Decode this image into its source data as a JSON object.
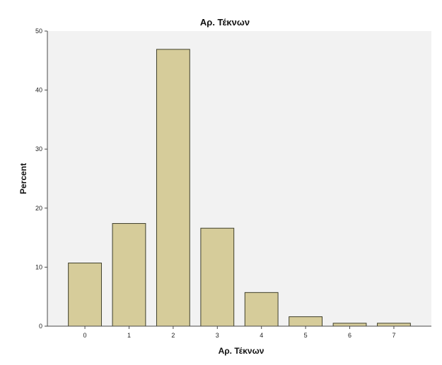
{
  "chart_data": {
    "type": "bar",
    "title": "Αρ. Τέκνων",
    "xlabel": "Αρ. Τέκνων",
    "ylabel": "Percent",
    "categories": [
      "0",
      "1",
      "2",
      "3",
      "4",
      "5",
      "6",
      "7"
    ],
    "values": [
      10.7,
      17.4,
      46.9,
      16.6,
      5.7,
      1.6,
      0.5,
      0.5
    ],
    "ylim": [
      0,
      50
    ],
    "yticks": [
      "0",
      "10",
      "20",
      "30",
      "40",
      "50"
    ],
    "grid": false,
    "legend": "none",
    "colors": {
      "bar_fill": "#d6cc9a",
      "bar_stroke": "#3f3f2a",
      "plot_background": "#f2f2f2",
      "axis": "#4a4a4a"
    }
  }
}
